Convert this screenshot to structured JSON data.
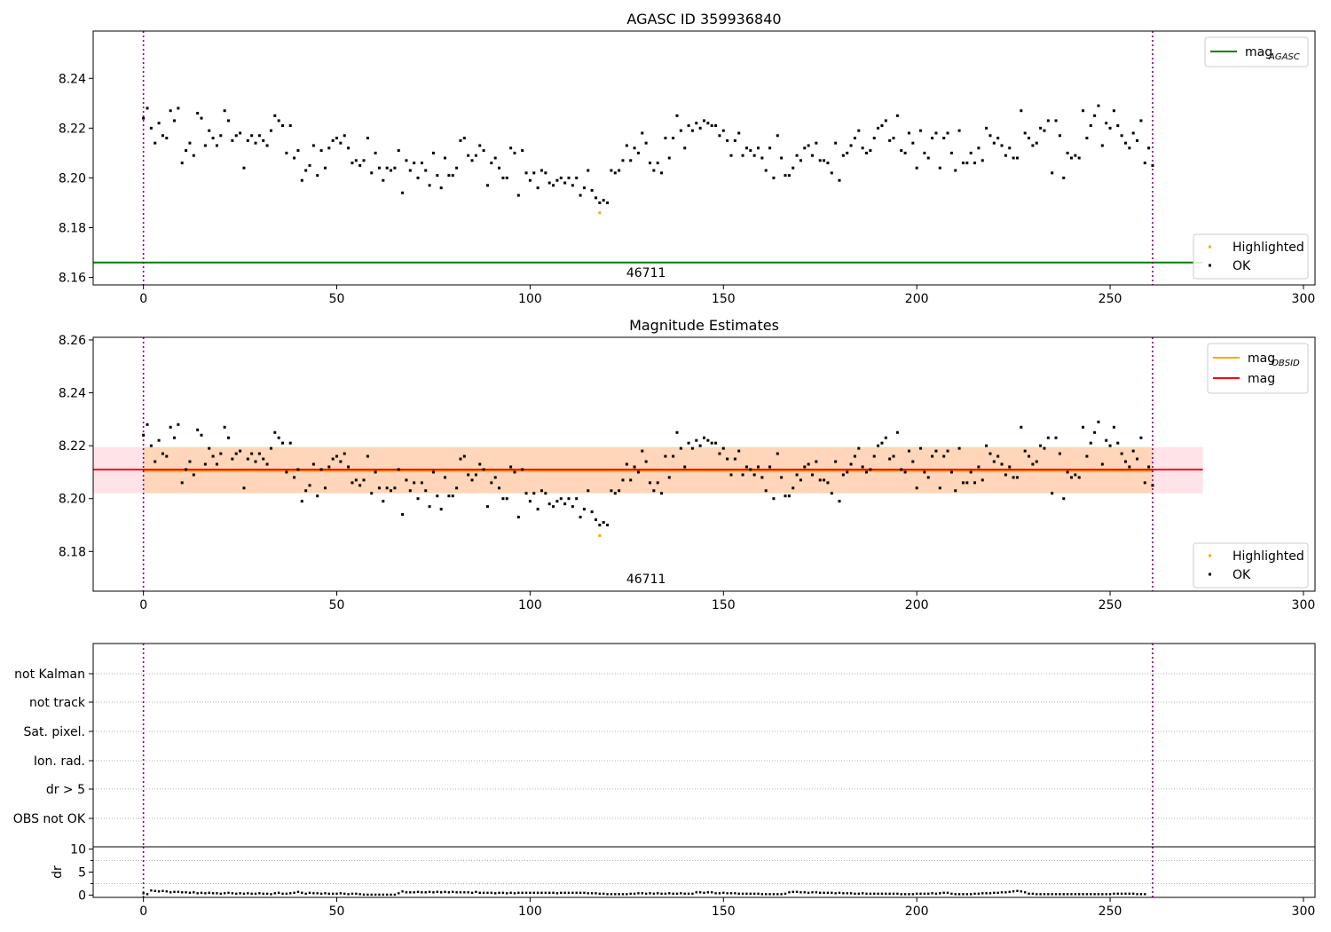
{
  "chart_data": {
    "type": "scatter",
    "x_axis": {
      "ticks": [
        0,
        50,
        100,
        150,
        200,
        250,
        300
      ],
      "range": [
        -13,
        303
      ]
    },
    "vlines": [
      0,
      261
    ],
    "obsid_label": "46711",
    "highlighted_point": {
      "x": 118,
      "y": 8.186
    },
    "ok_points": {
      "x_start": 0,
      "y": [
        8.224,
        8.228,
        8.22,
        8.214,
        8.222,
        8.217,
        8.216,
        8.227,
        8.223,
        8.228,
        8.206,
        8.211,
        8.214,
        8.209,
        8.226,
        8.224,
        8.213,
        8.219,
        8.216,
        8.213,
        8.217,
        8.227,
        8.223,
        8.215,
        8.217,
        8.218,
        8.204,
        8.215,
        8.217,
        8.214,
        8.217,
        8.215,
        8.213,
        8.219,
        8.225,
        8.223,
        8.221,
        8.21,
        8.221,
        8.208,
        8.211,
        8.199,
        8.203,
        8.205,
        8.213,
        8.201,
        8.211,
        8.204,
        8.212,
        8.215,
        8.216,
        8.214,
        8.217,
        8.212,
        8.206,
        8.207,
        8.205,
        8.207,
        8.216,
        8.202,
        8.21,
        8.204,
        8.199,
        8.204,
        8.203,
        8.204,
        8.211,
        8.194,
        8.207,
        8.203,
        8.206,
        8.2,
        8.206,
        8.203,
        8.197,
        8.21,
        8.201,
        8.196,
        8.208,
        8.201,
        8.201,
        8.204,
        8.215,
        8.216,
        8.209,
        8.207,
        8.209,
        8.213,
        8.211,
        8.197,
        8.206,
        8.208,
        8.204,
        8.2,
        8.2,
        8.212,
        8.21,
        8.193,
        8.211,
        8.202,
        8.199,
        8.202,
        8.196,
        8.203,
        8.202,
        8.198,
        8.197,
        8.199,
        8.2,
        8.198,
        8.2,
        8.197,
        8.2,
        8.193,
        8.196,
        8.203,
        8.195,
        8.192,
        8.19,
        8.191,
        8.19,
        8.203,
        8.202,
        8.203,
        8.207,
        8.213,
        8.207,
        8.212,
        8.21,
        8.218,
        8.214,
        8.206,
        8.203,
        8.206,
        8.202,
        8.216,
        8.208,
        8.216,
        8.225,
        8.219,
        8.212,
        8.221,
        8.219,
        8.222,
        8.22,
        8.223,
        8.222,
        8.221,
        8.221,
        8.217,
        8.219,
        8.215,
        8.209,
        8.215,
        8.218,
        8.209,
        8.212,
        8.211,
        8.209,
        8.212,
        8.208,
        8.203,
        8.212,
        8.2,
        8.217,
        8.208,
        8.201,
        8.201,
        8.204,
        8.209,
        8.207,
        8.212,
        8.213,
        8.209,
        8.214,
        8.207,
        8.207,
        8.206,
        8.202,
        8.214,
        8.199,
        8.209,
        8.21,
        8.213,
        8.216,
        8.219,
        8.212,
        8.21,
        8.211,
        8.216,
        8.22,
        8.221,
        8.223,
        8.215,
        8.216,
        8.225,
        8.211,
        8.21,
        8.218,
        8.214,
        8.204,
        8.219,
        8.21,
        8.208,
        8.216,
        8.218,
        8.204,
        8.216,
        8.218,
        8.21,
        8.203,
        8.219,
        8.206,
        8.206,
        8.21,
        8.206,
        8.212,
        8.207,
        8.22,
        8.217,
        8.214,
        8.216,
        8.213,
        8.209,
        8.212,
        8.208,
        8.208,
        8.227,
        8.218,
        8.216,
        8.213,
        8.214,
        8.22,
        8.219,
        8.223,
        8.202,
        8.223,
        8.217,
        8.2,
        8.21,
        8.208,
        8.209,
        8.208,
        8.227,
        8.216,
        8.221,
        8.225,
        8.229,
        8.213,
        8.222,
        8.22,
        8.227,
        8.221,
        8.217,
        8.214,
        8.212,
        8.218,
        8.215,
        8.223,
        8.206,
        8.212,
        8.205
      ]
    },
    "panel1": {
      "title": "AGASC ID 359936840",
      "yticks": [
        8.16,
        8.18,
        8.2,
        8.22,
        8.24
      ],
      "yrange": [
        8.157,
        8.259
      ],
      "mag_agasc": 8.166,
      "line_legend": [
        {
          "base": "mag",
          "sub": "AGASC",
          "color": "#008000"
        }
      ],
      "point_legend": [
        {
          "label": "Highlighted",
          "color": "#ffa500"
        },
        {
          "label": "OK",
          "color": "#000000"
        }
      ]
    },
    "panel2": {
      "title": "Magnitude Estimates",
      "yticks": [
        8.18,
        8.2,
        8.22,
        8.24,
        8.26
      ],
      "yrange": [
        8.165,
        8.261
      ],
      "mag": 8.211,
      "mag_obsid": 8.2105,
      "band": [
        8.202,
        8.2195
      ],
      "line_legend": [
        {
          "base": "mag",
          "sub": "OBSID",
          "color": "#ffa500"
        },
        {
          "base": "mag",
          "sub": "",
          "color": "#ff0000"
        }
      ],
      "point_legend": [
        {
          "label": "Highlighted",
          "color": "#ffa500"
        },
        {
          "label": "OK",
          "color": "#000000"
        }
      ]
    },
    "panel3": {
      "flags": [
        "not Kalman",
        "not track",
        "Sat. pixel.",
        "Ion. rad.",
        "dr > 5",
        "OBS not OK"
      ]
    },
    "panel4": {
      "ylabel": "dr",
      "yticks": [
        0,
        5,
        10
      ],
      "yrange": [
        -0.5,
        10.5
      ],
      "dr": [
        0.4,
        0.2,
        1.0,
        0.9,
        0.8,
        0.9,
        0.8,
        0.6,
        0.7,
        0.7,
        0.6,
        0.6,
        0.5,
        0.6,
        0.4,
        0.5,
        0.4,
        0.5,
        0.4,
        0.4,
        0.3,
        0.4,
        0.5,
        0.4,
        0.3,
        0.4,
        0.3,
        0.4,
        0.3,
        0.3,
        0.4,
        0.3,
        0.3,
        0.2,
        0.4,
        0.5,
        0.3,
        0.3,
        0.4,
        0.5,
        0.7,
        0.5,
        0.3,
        0.5,
        0.4,
        0.4,
        0.3,
        0.4,
        0.3,
        0.3,
        0.3,
        0.4,
        0.3,
        0.2,
        0.3,
        0.3,
        0.2,
        0.1,
        0.1,
        0.1,
        0.1,
        0.1,
        0.1,
        0.1,
        0.1,
        0.1,
        0.4,
        0.8,
        0.6,
        0.6,
        0.6,
        0.7,
        0.6,
        0.6,
        0.7,
        0.6,
        0.7,
        0.6,
        0.7,
        0.6,
        0.7,
        0.6,
        0.6,
        0.6,
        0.6,
        0.5,
        0.7,
        0.5,
        0.5,
        0.5,
        0.5,
        0.4,
        0.5,
        0.5,
        0.4,
        0.5,
        0.4,
        0.5,
        0.5,
        0.5,
        0.5,
        0.5,
        0.5,
        0.5,
        0.5,
        0.5,
        0.5,
        0.4,
        0.5,
        0.5,
        0.5,
        0.5,
        0.5,
        0.5,
        0.5,
        0.4,
        0.4,
        0.4,
        0.3,
        0.3,
        0.2,
        0.2,
        0.2,
        0.2,
        0.2,
        0.2,
        0.3,
        0.3,
        0.4,
        0.4,
        0.3,
        0.4,
        0.3,
        0.4,
        0.3,
        0.3,
        0.4,
        0.3,
        0.3,
        0.4,
        0.3,
        0.3,
        0.3,
        0.6,
        0.6,
        0.5,
        0.6,
        0.6,
        0.4,
        0.4,
        0.5,
        0.4,
        0.4,
        0.4,
        0.3,
        0.3,
        0.3,
        0.3,
        0.3,
        0.3,
        0.2,
        0.2,
        0.2,
        0.2,
        0.2,
        0.2,
        0.3,
        0.6,
        0.7,
        0.7,
        0.6,
        0.6,
        0.5,
        0.6,
        0.6,
        0.5,
        0.5,
        0.5,
        0.5,
        0.4,
        0.5,
        0.4,
        0.4,
        0.4,
        0.3,
        0.3,
        0.4,
        0.3,
        0.3,
        0.3,
        0.3,
        0.3,
        0.3,
        0.3,
        0.3,
        0.3,
        0.2,
        0.2,
        0.2,
        0.2,
        0.3,
        0.3,
        0.3,
        0.3,
        0.4,
        0.3,
        0.4,
        0.5,
        0.5,
        0.3,
        0.2,
        0.2,
        0.2,
        0.2,
        0.2,
        0.3,
        0.3,
        0.4,
        0.4,
        0.4,
        0.5,
        0.5,
        0.6,
        0.6,
        0.7,
        0.8,
        0.9,
        0.8,
        0.6,
        0.3,
        0.3,
        0.2,
        0.2,
        0.2,
        0.2,
        0.2,
        0.2,
        0.2,
        0.2,
        0.2,
        0.2,
        0.2,
        0.2,
        0.2,
        0.2,
        0.2,
        0.2,
        0.2,
        0.2,
        0.2,
        0.2,
        0.3,
        0.3,
        0.3,
        0.3,
        0.3,
        0.3,
        0.2,
        0.2,
        0.2
      ]
    }
  }
}
